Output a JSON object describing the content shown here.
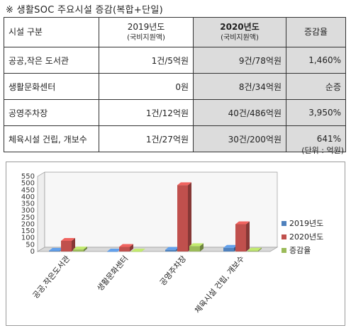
{
  "title": "※ 생활SOC 주요시설 증감(복합+단일)",
  "table": {
    "headers": {
      "facility": "시설 구분",
      "y2019": "2019년도",
      "y2019_sub": "(국비지원액)",
      "y2020": "2020년도",
      "y2020_sub": "(국비지원액)",
      "rate": "증감율"
    },
    "rows": [
      {
        "facility": "공공,작은 도서관",
        "y2019": "1건/5억원",
        "y2020": "9건/78억원",
        "rate": "1,460%"
      },
      {
        "facility": "생활문화센터",
        "y2019": "0원",
        "y2020": "8건/34억원",
        "rate": "순증"
      },
      {
        "facility": "공영주차장",
        "y2019": "1건/12억원",
        "y2020": "40건/486억원",
        "rate": "3,950%"
      },
      {
        "facility": "체육시설 건립, 개보수",
        "y2019": "1건/27억원",
        "y2020": "30건/200억원",
        "rate": "641%"
      }
    ]
  },
  "unit_note": "(단위 : 억원)",
  "chart_data": {
    "type": "bar",
    "categories": [
      "공공,작은도서관",
      "생활문화센터",
      "공영주차장",
      "체육시설 건립, 개보수"
    ],
    "series": [
      {
        "name": "2019년도",
        "color": "#4f81bd",
        "values": [
          5,
          0,
          12,
          27
        ]
      },
      {
        "name": "2020년도",
        "color": "#c0504d",
        "values": [
          78,
          34,
          486,
          200
        ]
      },
      {
        "name": "증감율",
        "color": "#9bbb59",
        "values": [
          14.6,
          0,
          39.5,
          6.41
        ]
      }
    ],
    "y_ticks": [
      "0",
      "50",
      "100",
      "150",
      "200",
      "250",
      "300",
      "350",
      "400",
      "450",
      "500",
      "550"
    ],
    "ylim": [
      0,
      550
    ],
    "grid": false,
    "legend": "right"
  }
}
